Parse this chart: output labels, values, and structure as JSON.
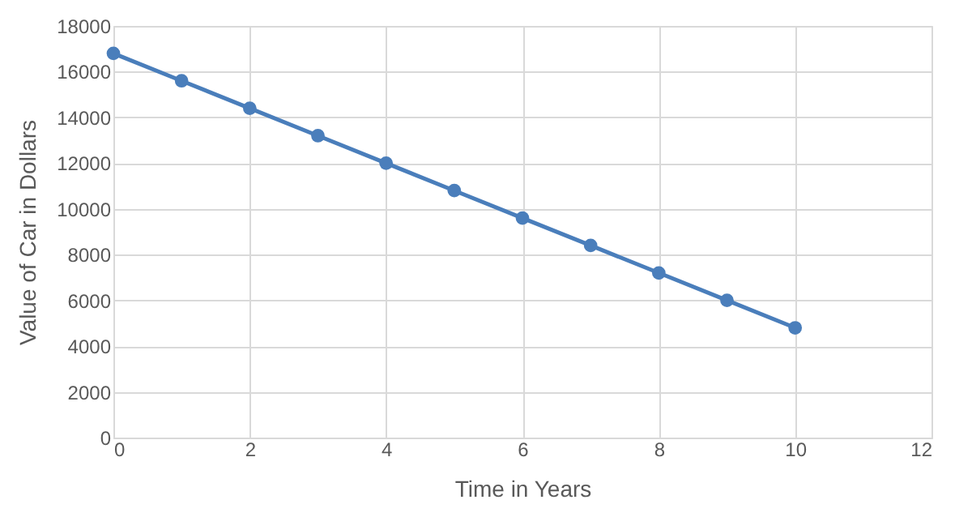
{
  "chart_data": {
    "type": "line",
    "xlabel": "Time in Years",
    "ylabel": "Value of Car in Dollars",
    "x": [
      0,
      1,
      2,
      3,
      4,
      5,
      6,
      7,
      8,
      9,
      10
    ],
    "series": [
      {
        "color": "#4a7ebb",
        "values": [
          16800,
          15600,
          14400,
          13200,
          12000,
          10800,
          9600,
          8400,
          7200,
          6000,
          4800
        ]
      }
    ],
    "xlim": [
      0,
      12
    ],
    "xticks": [
      0,
      2,
      4,
      6,
      8,
      10,
      12
    ],
    "ylim": [
      0,
      18000
    ],
    "yticks": [
      0,
      2000,
      4000,
      6000,
      8000,
      10000,
      12000,
      14000,
      16000,
      18000
    ],
    "grid": true,
    "marker": "circle"
  }
}
